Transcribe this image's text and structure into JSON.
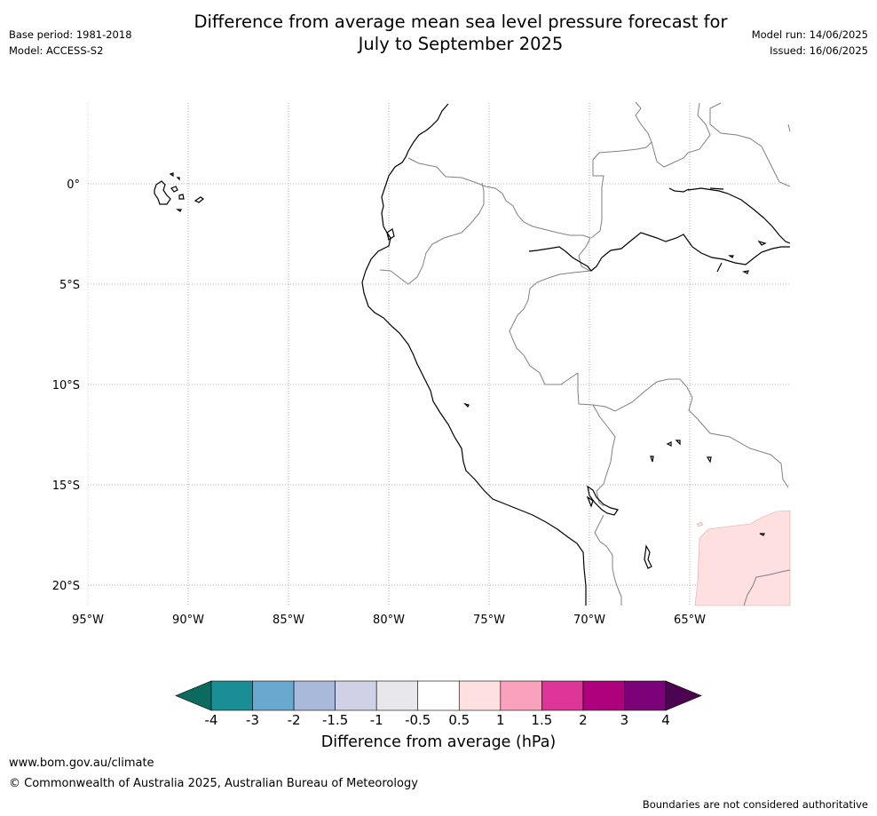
{
  "title": {
    "line1": "Difference from average mean sea level pressure forecast for",
    "line2": "July to September 2025"
  },
  "meta": {
    "base_period": "Base period: 1981-2018",
    "model": "Model: ACCESS-S2",
    "model_run": "Model run: 14/06/2025",
    "issued": "Issued: 16/06/2025"
  },
  "map": {
    "lon_range": [
      -95,
      -60
    ],
    "lat_range": [
      -21,
      4
    ],
    "lon_ticks": [
      {
        "value": -95,
        "label": "95°W"
      },
      {
        "value": -90,
        "label": "90°W"
      },
      {
        "value": -85,
        "label": "85°W"
      },
      {
        "value": -80,
        "label": "80°W"
      },
      {
        "value": -75,
        "label": "75°W"
      },
      {
        "value": -70,
        "label": "70°W"
      },
      {
        "value": -65,
        "label": "65°W"
      }
    ],
    "lat_ticks": [
      {
        "value": 0,
        "label": "0°"
      },
      {
        "value": -5,
        "label": "5°S"
      },
      {
        "value": -10,
        "label": "10°S"
      },
      {
        "value": -15,
        "label": "15°S"
      },
      {
        "value": -20,
        "label": "20°S"
      }
    ],
    "gridlines": true,
    "coast_color": "#000000",
    "border_color": "#808080",
    "anomaly_region": {
      "category": "0.5 to 1",
      "color": "#fde0df",
      "location": "south-east corner (Bolivia / northern Chile)"
    }
  },
  "colorbar": {
    "title": "Difference from average (hPa)",
    "labels": [
      "-4",
      "-3",
      "-2",
      "-1.5",
      "-1",
      "-0.5",
      "0.5",
      "1",
      "1.5",
      "2",
      "3",
      "4"
    ],
    "low_extend_color": "#0c6b5e",
    "high_extend_color": "#4b0550",
    "colors": [
      "#1a8e95",
      "#69a9d0",
      "#a8b9da",
      "#d0d1e6",
      "#e8e7eb",
      "#ffffff",
      "#fde0df",
      "#f9a1bd",
      "#dd3497",
      "#ae017e",
      "#7a0177"
    ]
  },
  "footer": {
    "website": "www.bom.gov.au/climate",
    "copyright": "© Commonwealth of Australia 2025, Australian Bureau of Meteorology",
    "disclaimer": "Boundaries are not considered authoritative"
  }
}
